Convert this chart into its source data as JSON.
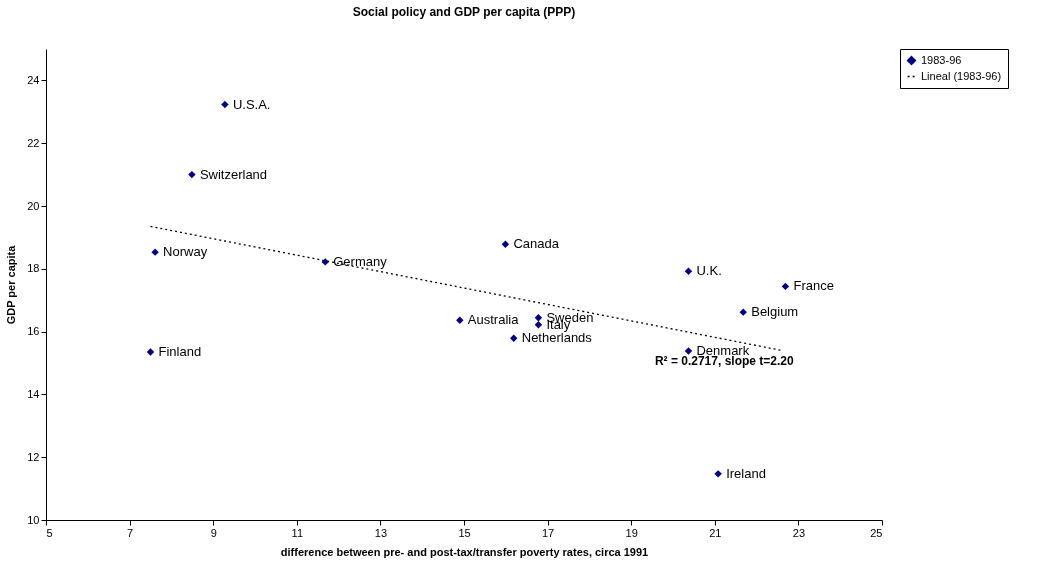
{
  "chart_data": {
    "type": "scatter",
    "title": "Social policy and GDP per capita (PPP)",
    "xlabel": "difference between pre- and post-tax/transfer poverty rates, circa 1991",
    "ylabel": "GDP per capita",
    "xlim": [
      5,
      25
    ],
    "xticks": [
      5,
      7,
      9,
      11,
      13,
      15,
      17,
      19,
      21,
      23,
      25
    ],
    "ylim": [
      10,
      25
    ],
    "yticks": [
      10,
      12,
      14,
      16,
      18,
      20,
      22,
      24
    ],
    "grid": false,
    "legend": "right",
    "marker": "diamond",
    "series": [
      {
        "name": "1983-96",
        "color": "#000080",
        "x": [
          9.28,
          8.49,
          7.61,
          7.5,
          11.68,
          15.99,
          14.9,
          16.78,
          16.78,
          16.19,
          20.37,
          22.69,
          21.68,
          20.37,
          21.08
        ],
        "values": [
          23.23,
          21.0,
          18.53,
          15.35,
          18.22,
          18.78,
          16.36,
          16.44,
          16.22,
          15.79,
          17.92,
          17.44,
          16.62,
          15.38,
          11.47
        ]
      },
      {
        "name": "Lineal (1983-96)",
        "type": "line",
        "color": "#000000",
        "line_style": "dotted",
        "marker": "none",
        "x": [
          7.5,
          22.6
        ],
        "values": [
          19.35,
          15.4
        ]
      }
    ],
    "annotations": [
      {
        "text": "U.S.A.",
        "x": 9.28,
        "y": 23.23
      },
      {
        "text": "Switzerland",
        "x": 8.49,
        "y": 21.0
      },
      {
        "text": "Norway",
        "x": 7.61,
        "y": 18.53
      },
      {
        "text": "Finland",
        "x": 7.5,
        "y": 15.35
      },
      {
        "text": "Germany",
        "x": 11.68,
        "y": 18.22
      },
      {
        "text": "Canada",
        "x": 15.99,
        "y": 18.78
      },
      {
        "text": "Australia",
        "x": 14.9,
        "y": 16.36
      },
      {
        "text": "Sweden",
        "x": 16.78,
        "y": 16.44
      },
      {
        "text": "Italy",
        "x": 16.78,
        "y": 16.22
      },
      {
        "text": "Netherlands",
        "x": 16.19,
        "y": 15.79
      },
      {
        "text": "U.K.",
        "x": 20.37,
        "y": 17.92
      },
      {
        "text": "France",
        "x": 22.69,
        "y": 17.44
      },
      {
        "text": "Belgium",
        "x": 21.68,
        "y": 16.62
      },
      {
        "text": "Denmark",
        "x": 20.37,
        "y": 15.38
      },
      {
        "text": "Ireland",
        "x": 21.08,
        "y": 11.47
      },
      "R² = 0.2717, slope t=2.20"
    ]
  }
}
